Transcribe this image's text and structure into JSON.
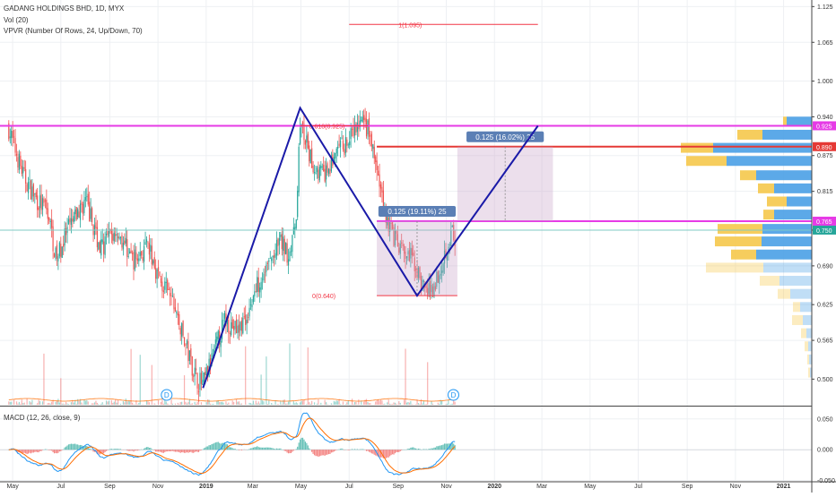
{
  "legend": {
    "title": "GADANG HOLDINGS BHD, 1D, MYX",
    "vol": "Vol (20)",
    "vpvr": "VPVR (Number Of Rows, 24, Up/Down, 70)",
    "macd": "MACD (12, 26, close, 9)"
  },
  "colors": {
    "up": "#26a69a",
    "down": "#ef5350",
    "pattern": "#1a1aa8",
    "fib": "#f23645",
    "magenta": "#e63be6",
    "range_box": "#c9a3bf",
    "vp_up": "#4aa0e6",
    "vp_down": "#f5c84b",
    "macd_line": "#2196f3",
    "signal_line": "#ff6d00",
    "price_line": "#80cbc4"
  },
  "chart_data": {
    "type": "candlestick",
    "x_axis": [
      "May",
      "Jul",
      "Sep",
      "Nov",
      "2019",
      "Mar",
      "May",
      "Jul",
      "Sep",
      "Nov",
      "2020",
      "Mar",
      "May",
      "Jul",
      "Sep",
      "Nov",
      "2021"
    ],
    "y_axis": {
      "ticks": [
        "1.125",
        "1.065",
        "1.000",
        "0.940",
        "0.875",
        "0.815",
        "0.750",
        "0.690",
        "0.625",
        "0.565",
        "0.500"
      ],
      "range": [
        0.475,
        1.13
      ]
    },
    "macd_axis": {
      "ticks": [
        "0.050",
        "0.000",
        "-0.050"
      ],
      "range": [
        -0.052,
        0.07
      ]
    },
    "price_path": [
      [
        "2018-04-25",
        0.925
      ],
      [
        "2018-05-03",
        0.89
      ],
      [
        "2018-05-15",
        0.84
      ],
      [
        "2018-06-01",
        0.8
      ],
      [
        "2018-06-15",
        0.78
      ],
      [
        "2018-06-25",
        0.7
      ],
      [
        "2018-07-10",
        0.75
      ],
      [
        "2018-08-01",
        0.8
      ],
      [
        "2018-08-20",
        0.72
      ],
      [
        "2018-09-10",
        0.75
      ],
      [
        "2018-10-01",
        0.7
      ],
      [
        "2018-10-20",
        0.72
      ],
      [
        "2018-11-05",
        0.66
      ],
      [
        "2018-11-20",
        0.63
      ],
      [
        "2018-12-05",
        0.56
      ],
      [
        "2018-12-20",
        0.5
      ],
      [
        "2018-12-28",
        0.49
      ],
      [
        "2019-01-10",
        0.54
      ],
      [
        "2019-01-25",
        0.6
      ],
      [
        "2019-02-10",
        0.58
      ],
      [
        "2019-02-25",
        0.62
      ],
      [
        "2019-03-10",
        0.67
      ],
      [
        "2019-03-25",
        0.7
      ],
      [
        "2019-04-05",
        0.73
      ],
      [
        "2019-04-15",
        0.71
      ],
      [
        "2019-04-24",
        0.75
      ],
      [
        "2019-04-30",
        0.93
      ],
      [
        "2019-05-15",
        0.86
      ],
      [
        "2019-06-01",
        0.84
      ],
      [
        "2019-06-15",
        0.88
      ],
      [
        "2019-07-01",
        0.9
      ],
      [
        "2019-07-15",
        0.93
      ],
      [
        "2019-07-25",
        0.92
      ],
      [
        "2019-08-05",
        0.85
      ],
      [
        "2019-08-15",
        0.78
      ],
      [
        "2019-09-01",
        0.72
      ],
      [
        "2019-09-20",
        0.7
      ],
      [
        "2019-10-01",
        0.66
      ],
      [
        "2019-10-10",
        0.645
      ],
      [
        "2019-10-20",
        0.67
      ],
      [
        "2019-11-01",
        0.72
      ],
      [
        "2019-11-08",
        0.75
      ],
      [
        "2019-11-12",
        0.72
      ]
    ],
    "series": [
      {
        "name": "Vol (20)",
        "type": "histogram",
        "pane": "price"
      },
      {
        "name": "MACD (12, 26, close, 9)",
        "type": "line+histogram",
        "pane": "macd"
      }
    ],
    "price_scale_labels": [
      {
        "text": "0.925",
        "y": 0.925,
        "color": "#e63be6"
      },
      {
        "text": "0.890",
        "y": 0.89,
        "color": "#e53935"
      },
      {
        "text": "0.765",
        "y": 0.765,
        "color": "#e63be6"
      },
      {
        "text": "0.750",
        "y": 0.75,
        "color": "#26a69a"
      }
    ],
    "horizontal_lines": [
      {
        "y": 0.925,
        "color": "#e63be6",
        "from": "2018-04-15",
        "to": "2021-01-31"
      },
      {
        "y": 0.89,
        "color": "#e53935",
        "from": "2019-08-05",
        "to": "2021-01-31"
      },
      {
        "y": 0.765,
        "color": "#e63be6",
        "from": "2019-08-05",
        "to": "2021-01-31"
      },
      {
        "y": 0.75,
        "color": "#80cbc4",
        "from": "2018-04-15",
        "to": "2021-01-31"
      }
    ],
    "fib": [
      {
        "label": "1(1.095)",
        "y": 1.095
      },
      {
        "label": "0.618(0.925)",
        "y": 0.925
      },
      {
        "label": "0(0.640)",
        "y": 0.64
      }
    ],
    "pattern": [
      [
        "2018-12-28",
        0.485
      ],
      [
        "2019-04-30",
        0.955
      ],
      [
        "2019-09-25",
        0.64
      ],
      [
        "2020-02-25",
        0.925
      ]
    ],
    "ranges": [
      {
        "label": "0.125 (19.11%) 25",
        "top": 0.765,
        "bottom": 0.64,
        "from": "2019-08-05",
        "to": "2019-11-15"
      },
      {
        "label": "0.125 (16.02%) 25",
        "top": 0.89,
        "bottom": 0.765,
        "from": "2019-11-15",
        "to": "2020-03-15"
      }
    ],
    "dividends": [
      {
        "label": "D",
        "date": "2018-11-12"
      },
      {
        "label": "D",
        "date": "2019-11-10"
      }
    ],
    "volume_profile": [
      {
        "price": 0.932,
        "up": 28,
        "down": 4
      },
      {
        "price": 0.91,
        "up": 55,
        "down": 28
      },
      {
        "price": 0.888,
        "up": 110,
        "down": 36
      },
      {
        "price": 0.866,
        "up": 95,
        "down": 45
      },
      {
        "price": 0.842,
        "up": 62,
        "down": 18
      },
      {
        "price": 0.82,
        "up": 42,
        "down": 18
      },
      {
        "price": 0.798,
        "up": 28,
        "down": 22
      },
      {
        "price": 0.776,
        "up": 42,
        "down": 12
      },
      {
        "price": 0.752,
        "up": 55,
        "down": 50
      },
      {
        "price": 0.731,
        "up": 56,
        "down": 52
      },
      {
        "price": 0.709,
        "up": 62,
        "down": 28
      },
      {
        "price": 0.687,
        "up": 54,
        "down": 64
      },
      {
        "price": 0.665,
        "up": 36,
        "down": 22
      },
      {
        "price": 0.643,
        "up": 24,
        "down": 14
      },
      {
        "price": 0.621,
        "up": 13,
        "down": 8
      },
      {
        "price": 0.599,
        "up": 10,
        "down": 12
      },
      {
        "price": 0.577,
        "up": 6,
        "down": 6
      },
      {
        "price": 0.555,
        "up": 4,
        "down": 4
      },
      {
        "price": 0.533,
        "up": 3,
        "down": 2
      },
      {
        "price": 0.511,
        "up": 2,
        "down": 2
      }
    ]
  }
}
